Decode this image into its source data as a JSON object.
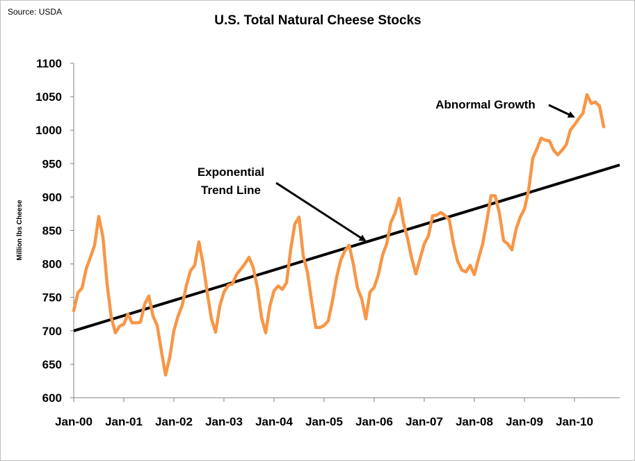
{
  "chart_data": {
    "type": "line",
    "source": "Source: USDA",
    "title": "U.S.  Total Natural Cheese Stocks",
    "ylabel": "Million lbs Cheese",
    "xlabel": "",
    "ylim": [
      600,
      1100
    ],
    "yticks": [
      600,
      650,
      700,
      750,
      800,
      850,
      900,
      950,
      1000,
      1050,
      1100
    ],
    "xtick_labels": [
      "Jan-00",
      "Jan-01",
      "Jan-02",
      "Jan-03",
      "Jan-04",
      "Jan-05",
      "Jan-06",
      "Jan-07",
      "Jan-08",
      "Jan-09",
      "Jan-10"
    ],
    "grid": false,
    "legend": "none",
    "colors": {
      "series": "#f79646",
      "trend": "#000000",
      "axis": "#808080"
    },
    "series": [
      {
        "values": [
          730,
          757,
          764,
          793,
          810,
          828,
          871,
          840,
          770,
          720,
          697,
          707,
          710,
          725,
          712,
          712,
          713,
          740,
          752,
          722,
          708,
          670,
          634,
          660,
          700,
          722,
          738,
          768,
          790,
          798,
          833,
          800,
          757,
          718,
          698,
          737,
          758,
          768,
          770,
          784,
          792,
          800,
          810,
          795,
          765,
          720,
          697,
          737,
          760,
          767,
          762,
          772,
          822,
          860,
          870,
          812,
          788,
          745,
          705,
          705,
          708,
          715,
          745,
          780,
          806,
          820,
          828,
          800,
          764,
          748,
          718,
          758,
          765,
          784,
          813,
          830,
          862,
          876,
          898,
          862,
          838,
          808,
          785,
          808,
          830,
          842,
          872,
          873,
          877,
          872,
          866,
          830,
          804,
          791,
          788,
          798,
          784,
          808,
          830,
          864,
          902,
          902,
          876,
          835,
          830,
          821,
          852,
          870,
          882,
          910,
          958,
          972,
          988,
          985,
          984,
          970,
          963,
          970,
          978,
          1000,
          1008,
          1017,
          1025,
          1053,
          1040,
          1042,
          1036,
          1005
        ]
      }
    ],
    "trend": {
      "start": 700,
      "end": 948
    },
    "annotations": [
      {
        "text_lines": [
          "Exponential",
          "Trend Line"
        ]
      },
      {
        "text_lines": [
          "Abnormal Growth"
        ]
      }
    ]
  }
}
